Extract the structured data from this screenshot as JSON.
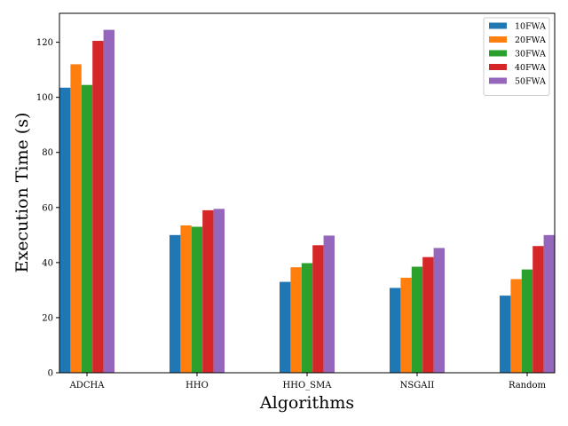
{
  "chart_data": {
    "type": "bar",
    "xlabel": "Algorithms",
    "ylabel": "Execution Time (s)",
    "categories": [
      "ADCHA",
      "HHO",
      "HHO_SMA",
      "NSGAII",
      "Random"
    ],
    "series": [
      {
        "name": "10FWA",
        "color": "#1f77b4",
        "values": [
          103.5,
          50.0,
          33.0,
          30.8,
          28.0
        ]
      },
      {
        "name": "20FWA",
        "color": "#ff7f0e",
        "values": [
          112.0,
          53.5,
          38.3,
          34.5,
          34.0
        ]
      },
      {
        "name": "30FWA",
        "color": "#2ca02c",
        "values": [
          104.5,
          53.0,
          39.8,
          38.5,
          37.5
        ]
      },
      {
        "name": "40FWA",
        "color": "#d62728",
        "values": [
          120.5,
          59.0,
          46.3,
          42.0,
          46.0
        ]
      },
      {
        "name": "50FWA",
        "color": "#9467bd",
        "values": [
          124.5,
          59.5,
          49.8,
          45.3,
          50.0
        ]
      }
    ],
    "ylim": [
      0,
      130.5
    ],
    "yticks": [
      0,
      20,
      40,
      60,
      80,
      100,
      120
    ],
    "grid": false,
    "legend_position": "top-right"
  }
}
